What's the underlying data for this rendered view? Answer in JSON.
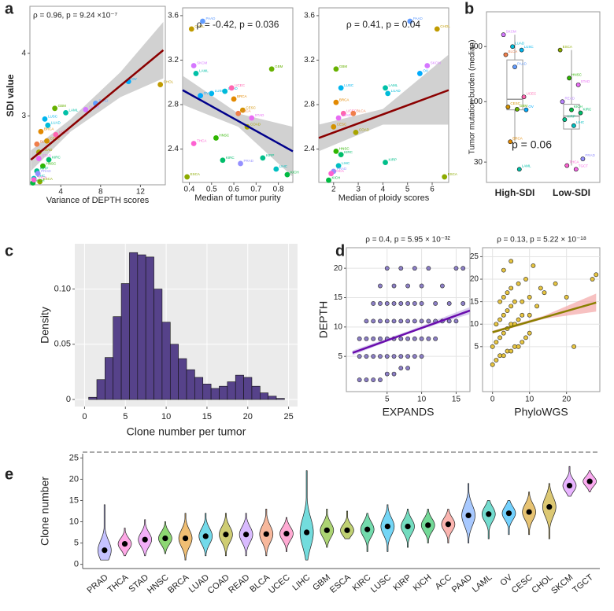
{
  "palette": {
    "ACC": "#F8766D",
    "BLCA": "#F07E4A",
    "BRCA": "#E38900",
    "CESC": "#D39200",
    "CHOL": "#C09B00",
    "COAD": "#A8A400",
    "ESCA": "#8CAB00",
    "GBM": "#67B100",
    "HNSC": "#2FB600",
    "KICH": "#00BA42",
    "KIRC": "#00BD6A",
    "KIRP": "#00BF8A",
    "LAML": "#00C0A7",
    "LIHC": "#00BFC1",
    "LUAD": "#00BBD9",
    "LUSC": "#00B5EE",
    "OV": "#00ABFD",
    "PAAD": "#619CFF",
    "PRAD": "#9590FF",
    "READ": "#BA83FF",
    "SKCM": "#D577FF",
    "STAD": "#E86CF3",
    "TGCT": "#F564E3",
    "THCA": "#FD61D1",
    "UCEC": "#FF65AF"
  },
  "chart_data": [
    {
      "type": "scatter",
      "panel": "a",
      "annotation": "ρ = 0.96, p = 9.24 ×10⁻⁷",
      "xlabel": "Variance of DEPTH scores",
      "ylabel": "SDI value",
      "xlim": [
        0.9,
        14.5
      ],
      "xticks": [
        4,
        8,
        12
      ],
      "ylim": [
        1.9,
        4.75
      ],
      "yticks": [
        3,
        4
      ],
      "labels": [
        "BLCA",
        "BRCA",
        "CESC",
        "CHOL",
        "COAD",
        "ESCA",
        "GBM",
        "HNSC",
        "KICH",
        "KIRC",
        "KIRP",
        "LAML",
        "LIHC",
        "LUAD",
        "LUSC",
        "OV",
        "PAAD",
        "PRAD",
        "SKCM",
        "STAD",
        "THCA",
        "UCEC"
      ],
      "x": [
        1.6,
        2.0,
        2.6,
        14.0,
        1.8,
        1.9,
        3.4,
        2.2,
        1.2,
        2.8,
        1.6,
        4.5,
        1.3,
        2.7,
        2.4,
        10.8,
        7.5,
        1.7,
        6.5,
        1.8,
        1.3,
        3.5
      ],
      "y": [
        2.55,
        2.75,
        2.6,
        3.5,
        2.42,
        1.95,
        3.12,
        2.2,
        1.93,
        2.3,
        2.12,
        3.05,
        2.0,
        2.85,
        2.95,
        3.55,
        3.2,
        2.08,
        3.1,
        2.32,
        1.98,
        2.7
      ],
      "trend": {
        "x": [
          1.0,
          14.3
        ],
        "y": [
          2.3,
          4.05
        ]
      },
      "trend_color": "#8B0000",
      "ci": {
        "x": [
          1.0,
          5.0,
          10.0,
          14.3
        ],
        "lower": [
          2.12,
          2.75,
          3.3,
          3.6
        ],
        "upper": [
          2.45,
          2.95,
          3.7,
          4.5
        ]
      },
      "ci_color": "#BEBEBE"
    },
    {
      "type": "scatter",
      "annotation": "ρ = -0.42, p = 0.036",
      "xlabel": "Median of tumor purity",
      "xlim": [
        0.37,
        0.865
      ],
      "xticks": [
        0.4,
        0.5,
        0.6,
        0.7,
        0.8
      ],
      "ylim": [
        2.1,
        3.67
      ],
      "yticks": [
        2.4,
        2.8,
        3.2,
        3.6
      ],
      "labels": [
        "CHOL",
        "PAAD",
        "SKCM",
        "LAML",
        "GBM",
        "LUAD",
        "LUSC",
        "OV",
        "BRCA",
        "UCEC",
        "CESC",
        "BLCA",
        "STAD",
        "COAD",
        "HNSC",
        "KIRC",
        "KIRP",
        "LIHC",
        "PRAD",
        "THCA",
        "ESCA",
        "KICH"
      ],
      "x": [
        0.41,
        0.46,
        0.42,
        0.43,
        0.77,
        0.56,
        0.5,
        0.45,
        0.6,
        0.59,
        0.64,
        0.62,
        0.68,
        0.66,
        0.52,
        0.55,
        0.73,
        0.79,
        0.63,
        0.42,
        0.39,
        0.84
      ],
      "y": [
        3.48,
        3.55,
        3.15,
        3.08,
        3.12,
        2.92,
        2.9,
        2.88,
        2.85,
        2.95,
        2.75,
        2.72,
        2.68,
        2.6,
        2.5,
        2.3,
        2.32,
        2.22,
        2.27,
        2.45,
        2.15,
        2.17
      ],
      "trend": {
        "x": [
          0.37,
          0.865
        ],
        "y": [
          2.93,
          2.38
        ]
      },
      "trend_color": "#00008B",
      "ci": {
        "x": [
          0.37,
          0.62,
          0.865
        ],
        "lower": [
          2.8,
          2.6,
          2.15
        ],
        "upper": [
          3.06,
          2.72,
          2.6
        ]
      },
      "ci_color": "#BEBEBE"
    },
    {
      "type": "scatter",
      "annotation": "ρ = 0.41, p = 0.04",
      "xlabel": "Median of ploidy scores",
      "xlim": [
        1.4,
        6.67
      ],
      "xticks": [
        2,
        3,
        4,
        5,
        6
      ],
      "ylim": [
        2.1,
        3.67
      ],
      "yticks": [
        2.4,
        2.8,
        3.2,
        3.6
      ],
      "labels": [
        "PAAD",
        "CHOL",
        "SKCM",
        "OV",
        "GBM",
        "LUAD",
        "LAML",
        "LUSC",
        "BRCA",
        "UCEC",
        "BLCA",
        "CESC",
        "STAD",
        "COAD",
        "HNSC",
        "KIRC",
        "KIRP",
        "LIHC",
        "PRAD",
        "THCA",
        "ESCA",
        "KICH"
      ],
      "x": [
        5.1,
        6.2,
        5.8,
        5.5,
        2.1,
        4.2,
        4.1,
        2.3,
        2.1,
        2.4,
        2.8,
        2.0,
        2.2,
        2.9,
        2.1,
        2.3,
        4.1,
        2.2,
        2.0,
        1.9,
        6.5,
        1.8
      ],
      "y": [
        3.55,
        3.48,
        3.15,
        3.08,
        3.12,
        2.9,
        2.95,
        2.95,
        2.82,
        2.72,
        2.72,
        2.6,
        2.68,
        2.55,
        2.38,
        2.35,
        2.28,
        2.25,
        2.2,
        2.18,
        2.15,
        2.12
      ],
      "trend": {
        "x": [
          1.4,
          6.67
        ],
        "y": [
          2.5,
          2.93
        ]
      },
      "trend_color": "#8B0000",
      "ci": {
        "x": [
          1.4,
          4.0,
          6.67
        ],
        "lower": [
          2.38,
          2.62,
          2.62
        ],
        "upper": [
          2.62,
          2.76,
          3.25
        ]
      },
      "ci_color": "#BEBEBE"
    },
    {
      "type": "box",
      "panel": "b",
      "annotation": "p = 0.06",
      "ylabel": "Tumor mutation burden (median)",
      "log_y": true,
      "ylim": [
        20,
        600
      ],
      "yticks": [
        30,
        100,
        300
      ],
      "categories": [
        "High-SDI",
        "Low-SDI"
      ],
      "q1": [
        85,
        58
      ],
      "median": [
        105,
        75
      ],
      "q3": [
        230,
        95
      ],
      "whisker_low": [
        45,
        28
      ],
      "whisker_high": [
        380,
        280
      ],
      "points": [
        {
          "labels": [
            "SKCM",
            "LUAD",
            "LUSC",
            "BLCA",
            "PAAD",
            "UCEC",
            "CESC",
            "GBM",
            "OV",
            "BRCA",
            "LAML"
          ],
          "values": [
            380,
            300,
            280,
            255,
            200,
            110,
            90,
            86,
            85,
            45,
            26
          ]
        },
        {
          "labels": [
            "ESCA",
            "HNSC",
            "STAD",
            "READ",
            "KICH",
            "KIRC",
            "KIRP",
            "LIHC",
            "PRAD",
            "THCA",
            "TGCT"
          ],
          "values": [
            280,
            160,
            140,
            100,
            85,
            80,
            70,
            62,
            32,
            28,
            26
          ]
        }
      ]
    },
    {
      "type": "histogram",
      "panel": "c",
      "xlabel": "Clone number per tumor",
      "ylabel": "Density",
      "grid": true,
      "background": "#EBEBEB",
      "color": "#56428A",
      "xlim": [
        -1.2,
        26.1
      ],
      "xticks": [
        0,
        5,
        10,
        15,
        20,
        25
      ],
      "ylim": [
        -0.0064,
        0.141
      ],
      "yticks": [
        0,
        0.05,
        {
          "value": 0.1,
          "label": "0.10"
        }
      ],
      "bins": [
        0.5,
        1.5,
        2.5,
        3.5,
        4.5,
        5.5,
        6.5,
        7.5,
        8.5,
        9.5,
        10.5,
        11.5,
        12.5,
        13.5,
        14.5,
        15.5,
        16.5,
        17.5,
        18.5,
        19.5,
        20.5,
        21.5,
        22.5,
        23.5,
        24.5
      ],
      "counts": [
        0.002,
        0.018,
        0.038,
        0.075,
        0.105,
        0.133,
        0.131,
        0.129,
        0.1,
        0.07,
        0.05,
        0.037,
        0.027,
        0.02,
        0.014,
        0.01,
        0.012,
        0.016,
        0.022,
        0.02,
        0.012,
        0.006,
        0.003,
        0.001
      ]
    },
    {
      "type": "scatter",
      "panel": "d",
      "annotation": "ρ = 0.4, p = 5.95 × 10⁻³²",
      "xlabel": "EXPANDS",
      "ylabel": "DEPTH",
      "grid": true,
      "color": "#8C7FC6",
      "outline": "#222222",
      "xlim": [
        -0.9,
        17
      ],
      "xticks": [
        5,
        10,
        15
      ],
      "ylim": [
        -1,
        23.5
      ],
      "yticks": [
        5,
        10,
        15,
        20
      ],
      "x": [
        1,
        2,
        3,
        4,
        5,
        6,
        7,
        8,
        1,
        2,
        3,
        4,
        5,
        6,
        7,
        8,
        9,
        10,
        1,
        2,
        3,
        4,
        5,
        6,
        7,
        8,
        9,
        10,
        11,
        12,
        2,
        3,
        4,
        5,
        6,
        7,
        8,
        9,
        10,
        11,
        12,
        13,
        14,
        15,
        3,
        4,
        5,
        6,
        7,
        8,
        9,
        10,
        12,
        14,
        16,
        4,
        6,
        8,
        10,
        13,
        5,
        7,
        9,
        11,
        15,
        16
      ],
      "y": [
        1,
        1,
        1,
        1,
        2,
        2,
        3,
        3,
        5,
        5,
        5,
        5,
        5,
        5,
        5,
        5,
        5,
        5,
        8,
        8,
        8,
        8,
        8,
        8,
        8,
        8,
        8,
        8,
        8,
        8,
        11,
        11,
        11,
        11,
        11,
        11,
        11,
        11,
        11,
        11,
        11,
        11,
        11,
        11,
        14,
        14,
        14,
        14,
        14,
        14,
        14,
        14,
        14,
        14,
        14,
        17,
        17,
        17,
        17,
        17,
        20,
        20,
        20,
        20,
        20,
        20
      ],
      "trend": {
        "x": [
          0,
          17
        ],
        "y": [
          5.6,
          12.8
        ]
      },
      "trend_color": "#6A0DAD",
      "ci": {
        "x": [
          0,
          8,
          17
        ],
        "lower": [
          5.2,
          8.9,
          12.2
        ],
        "upper": [
          6.0,
          9.3,
          13.4
        ]
      },
      "ci_color": "#C9B8E8"
    },
    {
      "type": "scatter",
      "annotation": "ρ = 0.13, p = 5.22 × 10⁻¹⁸",
      "xlabel": "PhyloWGS",
      "grid": true,
      "color": "#E6C440",
      "outline": "#222222",
      "xlim": [
        -2.7,
        29
      ],
      "xticks": [
        0,
        10,
        20
      ],
      "ylim": [
        -5,
        27
      ],
      "yticks": [
        5,
        10,
        15,
        20,
        25
      ],
      "x": [
        0,
        1,
        2,
        3,
        4,
        5,
        6,
        7,
        8,
        9,
        10,
        0,
        1,
        2,
        3,
        4,
        5,
        6,
        7,
        8,
        10,
        12,
        1,
        2,
        3,
        4,
        5,
        6,
        8,
        10,
        14,
        2,
        3,
        4,
        5,
        7,
        9,
        13,
        17,
        20,
        27,
        28,
        3,
        5,
        11,
        22
      ],
      "y": [
        1,
        2,
        3,
        3,
        4,
        4,
        5,
        5,
        6,
        7,
        8,
        5,
        6,
        7,
        8,
        9,
        10,
        10,
        11,
        12,
        12,
        14,
        10,
        11,
        12,
        13,
        14,
        15,
        15,
        16,
        17,
        15,
        16,
        17,
        18,
        19,
        20,
        18,
        19,
        16,
        20,
        21,
        22,
        24,
        23,
        5
      ],
      "trend": {
        "x": [
          0,
          28
        ],
        "y": [
          8.2,
          14.8
        ]
      },
      "trend_color": "#8B8000",
      "ci": {
        "x": [
          0,
          14,
          28
        ],
        "lower": [
          7.9,
          11.2,
          12.8
        ],
        "upper": [
          8.5,
          11.9,
          16.8
        ]
      },
      "ci_color": "#F4A6A6"
    },
    {
      "type": "violin",
      "panel": "e",
      "ylabel": "Clone number",
      "ylim": [
        -1,
        26
      ],
      "yticks": [
        0,
        5,
        10,
        15,
        20,
        25
      ],
      "categories": [
        "PRAD",
        "THCA",
        "STAD",
        "HNSC",
        "BRCA",
        "LUAD",
        "COAD",
        "READ",
        "BLCA",
        "UCEC",
        "LIHC",
        "GBM",
        "ESCA",
        "KIRC",
        "LUSC",
        "KIRP",
        "KICH",
        "ACC",
        "PAAD",
        "LAML",
        "OV",
        "CESC",
        "CHOL",
        "SKCM",
        "TGCT"
      ],
      "medians": [
        3.3,
        4.8,
        5.8,
        6.1,
        6.1,
        6.6,
        7.0,
        7.0,
        7.1,
        7.2,
        7.5,
        8.0,
        8.0,
        8.2,
        8.9,
        8.9,
        9.2,
        9.4,
        11.5,
        11.8,
        12.0,
        12.3,
        13.5,
        18.5,
        19.5
      ],
      "mins": [
        1,
        2,
        2,
        2.5,
        1,
        2,
        2,
        2,
        2,
        3,
        1,
        4,
        6,
        3,
        3,
        4,
        5,
        5,
        5,
        6,
        7,
        7,
        6,
        16,
        17
      ],
      "maxs": [
        14,
        8.5,
        10.5,
        10,
        12,
        12,
        12,
        12,
        13,
        11,
        22,
        13,
        12.5,
        12,
        14,
        13,
        13,
        13,
        19,
        15,
        15,
        17,
        19,
        23,
        22
      ]
    }
  ]
}
